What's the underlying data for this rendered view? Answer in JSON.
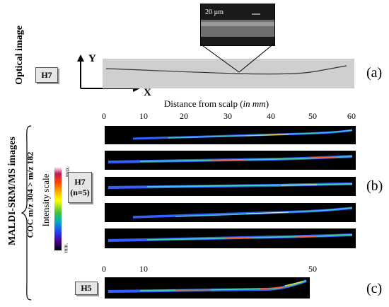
{
  "optical": {
    "section_title": "Optical image",
    "sample_label": "H7",
    "inset_scale": "20 µm",
    "y_axis": "Y",
    "x_axis": "X",
    "panel_letter": "(a)"
  },
  "axis_label": "Distance from scalp (in mm)",
  "axis_label_plain": "Distance from scalp (",
  "axis_label_unit": "in mm",
  "axis_label_close": ")",
  "ticks_top": [
    "0",
    "10",
    "20",
    "30",
    "40",
    "50",
    "60"
  ],
  "maldi": {
    "section_title": "MALDI-SRM/MS images",
    "transition": "COC m/z 304 > m/z 182",
    "intensity_label": "Intensity scale",
    "scale_max": "max.",
    "scale_min": "min.",
    "sample_label": "H7",
    "replicates": "(n=5)",
    "panel_letter": "(b)"
  },
  "ticks_bottom": [
    "0",
    "10",
    "50"
  ],
  "h5": {
    "sample_label": "H5",
    "panel_letter": "(c)"
  }
}
